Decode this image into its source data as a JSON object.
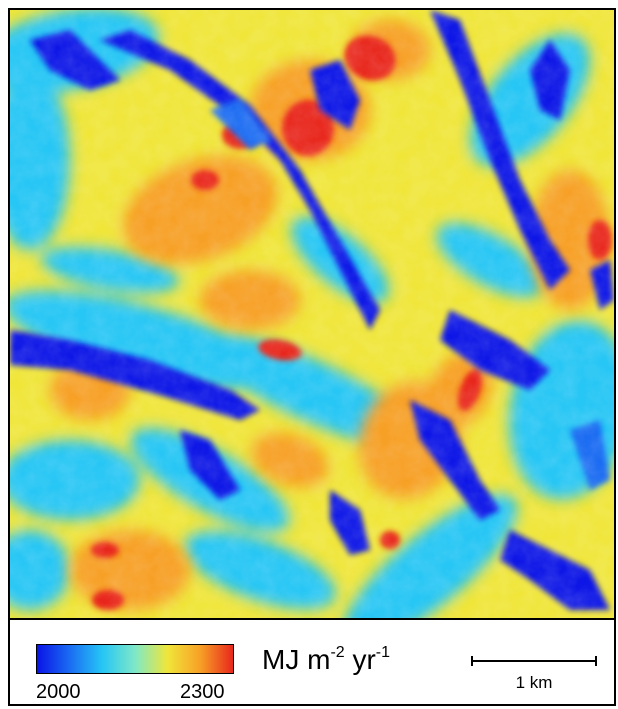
{
  "colorbar": {
    "min_label": "2000",
    "max_label": "2300",
    "unit_main": "MJ m",
    "unit_exp1": "-2",
    "unit_mid": " yr",
    "unit_exp2": "-1",
    "colors": [
      "#0a14e6",
      "#1a6cf2",
      "#26c6f5",
      "#7ee8c8",
      "#f0e63a",
      "#f7a026",
      "#e8281c"
    ]
  },
  "scale": {
    "label": "1 km"
  }
}
